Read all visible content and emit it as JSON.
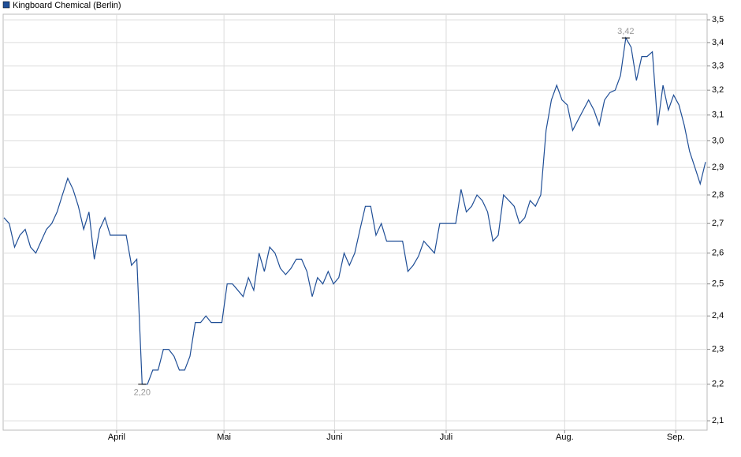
{
  "chart_data": {
    "type": "line",
    "log_scale": true,
    "grid": true,
    "legend": "top-left",
    "series": [
      {
        "name": "Kingboard Chemical (Berlin)",
        "color": "#1f4e96",
        "values": [
          2.72,
          2.7,
          2.62,
          2.66,
          2.68,
          2.62,
          2.6,
          2.64,
          2.68,
          2.7,
          2.74,
          2.8,
          2.86,
          2.82,
          2.76,
          2.68,
          2.74,
          2.58,
          2.68,
          2.72,
          2.66,
          2.66,
          2.66,
          2.66,
          2.56,
          2.58,
          2.2,
          2.2,
          2.24,
          2.24,
          2.3,
          2.3,
          2.28,
          2.24,
          2.24,
          2.28,
          2.38,
          2.38,
          2.4,
          2.38,
          2.38,
          2.38,
          2.5,
          2.5,
          2.48,
          2.46,
          2.52,
          2.48,
          2.6,
          2.54,
          2.62,
          2.6,
          2.55,
          2.53,
          2.55,
          2.58,
          2.58,
          2.54,
          2.46,
          2.52,
          2.5,
          2.54,
          2.5,
          2.52,
          2.6,
          2.56,
          2.6,
          2.68,
          2.76,
          2.76,
          2.66,
          2.7,
          2.64,
          2.64,
          2.64,
          2.64,
          2.54,
          2.56,
          2.59,
          2.64,
          2.62,
          2.6,
          2.7,
          2.7,
          2.7,
          2.7,
          2.82,
          2.74,
          2.76,
          2.8,
          2.78,
          2.74,
          2.64,
          2.66,
          2.8,
          2.78,
          2.76,
          2.7,
          2.72,
          2.78,
          2.76,
          2.8,
          3.04,
          3.16,
          3.22,
          3.16,
          3.14,
          3.04,
          3.08,
          3.12,
          3.16,
          3.12,
          3.06,
          3.16,
          3.19,
          3.2,
          3.26,
          3.42,
          3.38,
          3.24,
          3.34,
          3.34,
          3.36,
          3.06,
          3.22,
          3.12,
          3.18,
          3.14,
          3.06,
          2.96,
          2.9,
          2.84,
          2.92
        ]
      }
    ],
    "annotations": [
      {
        "x": 26,
        "label": "2,20"
      },
      {
        "x": 117,
        "label": "3,42"
      }
    ],
    "xlim": [
      0,
      132
    ],
    "xticks": [
      {
        "value": 21.2,
        "label": "April"
      },
      {
        "value": 41.4,
        "label": "Mai"
      },
      {
        "value": 62.2,
        "label": "Juni"
      },
      {
        "value": 83.2,
        "label": "Juli"
      },
      {
        "value": 105.5,
        "label": "Aug."
      },
      {
        "value": 126.4,
        "label": "Sep."
      }
    ],
    "ylim": [
      2.075,
      3.525
    ],
    "yticks": [
      {
        "value": 2.1,
        "label": "2,1"
      },
      {
        "value": 2.2,
        "label": "2,2"
      },
      {
        "value": 2.3,
        "label": "2,3"
      },
      {
        "value": 2.4,
        "label": "2,4"
      },
      {
        "value": 2.5,
        "label": "2,5"
      },
      {
        "value": 2.6,
        "label": "2,6"
      },
      {
        "value": 2.7,
        "label": "2,7"
      },
      {
        "value": 2.8,
        "label": "2,8"
      },
      {
        "value": 2.9,
        "label": "2,9"
      },
      {
        "value": 3.0,
        "label": "3,0"
      },
      {
        "value": 3.1,
        "label": "3,1"
      },
      {
        "value": 3.2,
        "label": "3,2"
      },
      {
        "value": 3.3,
        "label": "3,3"
      },
      {
        "value": 3.4,
        "label": "3,4"
      },
      {
        "value": 3.5,
        "label": "3,5"
      }
    ]
  }
}
